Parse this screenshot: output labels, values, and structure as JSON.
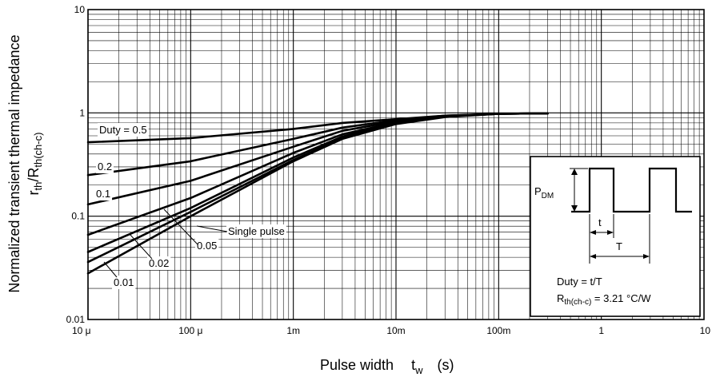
{
  "chart_data": {
    "type": "line",
    "x_scale": "log",
    "y_scale": "log",
    "xlim": [
      1e-05,
      10
    ],
    "ylim": [
      0.01,
      10
    ],
    "grid": true,
    "xlabel": {
      "main": "Pulse width",
      "symbol": "t",
      "sub": "w",
      "unit": "(s)"
    },
    "ylabel": {
      "line1": "Normalized transient thermal impedance",
      "r": "r",
      "r_sub": "th",
      "slash": "/R",
      "R_sub": "th(ch-c)"
    },
    "x_ticks": [
      {
        "value": 1e-05,
        "label": "10 μ"
      },
      {
        "value": 0.0001,
        "label": "100 μ"
      },
      {
        "value": 0.001,
        "label": "1m"
      },
      {
        "value": 0.01,
        "label": "10m"
      },
      {
        "value": 0.1,
        "label": "100m"
      },
      {
        "value": 1,
        "label": "1"
      },
      {
        "value": 10,
        "label": "10"
      }
    ],
    "y_ticks": [
      {
        "value": 0.01,
        "label": "0.01"
      },
      {
        "value": 0.1,
        "label": "0.1"
      },
      {
        "value": 1,
        "label": "1"
      },
      {
        "value": 10,
        "label": "10"
      }
    ],
    "series": [
      {
        "name": "Duty = 0.5",
        "x": [
          1e-05,
          0.0001,
          0.001,
          0.003,
          0.01,
          0.03,
          0.1,
          0.3
        ],
        "y": [
          0.52,
          0.57,
          0.7,
          0.8,
          0.87,
          0.94,
          0.98,
          0.99
        ]
      },
      {
        "name": "0.2",
        "x": [
          1e-05,
          0.0001,
          0.001,
          0.003,
          0.01,
          0.03,
          0.1,
          0.3
        ],
        "y": [
          0.25,
          0.34,
          0.56,
          0.72,
          0.85,
          0.94,
          0.98,
          0.99
        ]
      },
      {
        "name": "0.1",
        "x": [
          1e-05,
          0.0001,
          0.001,
          0.003,
          0.01,
          0.03,
          0.1,
          0.3
        ],
        "y": [
          0.13,
          0.22,
          0.47,
          0.67,
          0.83,
          0.93,
          0.98,
          0.99
        ]
      },
      {
        "name": "0.05",
        "x": [
          1e-05,
          0.0001,
          0.001,
          0.003,
          0.01,
          0.03,
          0.1,
          0.3
        ],
        "y": [
          0.066,
          0.15,
          0.41,
          0.62,
          0.81,
          0.93,
          0.98,
          0.99
        ]
      },
      {
        "name": "0.02",
        "x": [
          1e-05,
          0.0001,
          0.001,
          0.003,
          0.01,
          0.03,
          0.1,
          0.3
        ],
        "y": [
          0.045,
          0.12,
          0.37,
          0.59,
          0.8,
          0.92,
          0.98,
          0.99
        ]
      },
      {
        "name": "0.01",
        "x": [
          1e-05,
          0.0001,
          0.001,
          0.003,
          0.01,
          0.03,
          0.1,
          0.3
        ],
        "y": [
          0.036,
          0.11,
          0.35,
          0.57,
          0.79,
          0.92,
          0.98,
          0.99
        ]
      },
      {
        "name": "Single pulse",
        "x": [
          1e-05,
          0.0001,
          0.001,
          0.003,
          0.01,
          0.03,
          0.1,
          0.3
        ],
        "y": [
          0.028,
          0.1,
          0.34,
          0.56,
          0.78,
          0.91,
          0.98,
          0.99
        ]
      }
    ],
    "inset": {
      "pdm_label": "P",
      "pdm_sub": "DM",
      "t_label": "t",
      "T_label": "T",
      "duty_text": "Duty = t/T",
      "rth_label": "R",
      "rth_sub": "th(ch-c)",
      "rth_value": " = 3.21 °C/W"
    }
  }
}
